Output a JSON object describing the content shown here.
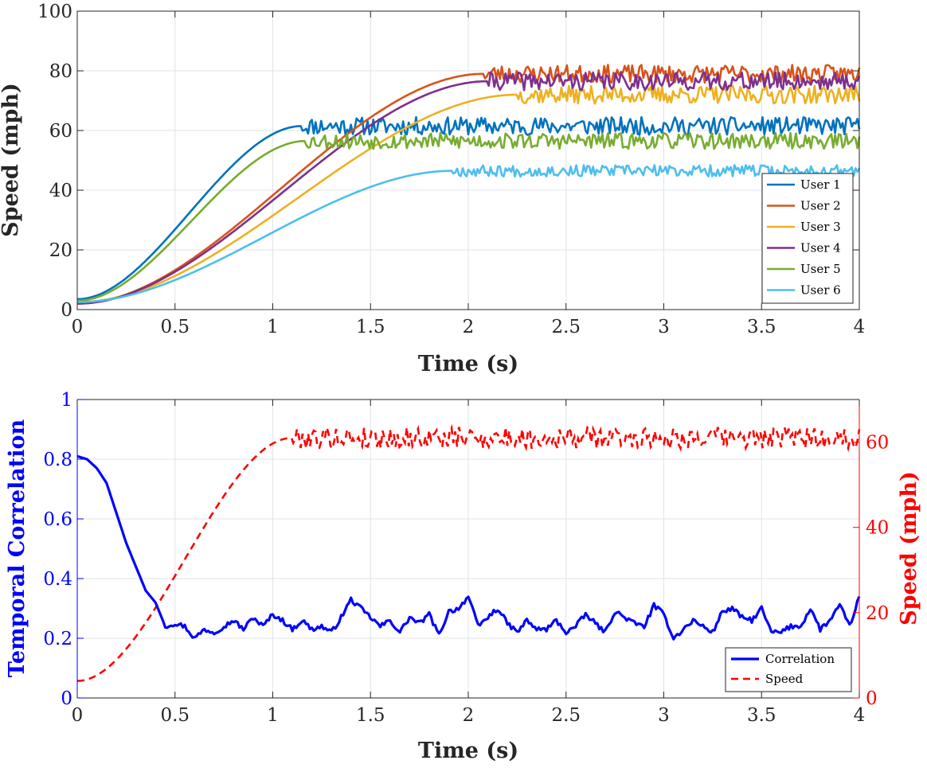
{
  "chart_data": [
    {
      "type": "line",
      "title": "",
      "xlabel": "Time (s)",
      "ylabel": "Speed (mph)",
      "xlim": [
        0,
        4
      ],
      "ylim": [
        0,
        100
      ],
      "xticks": [
        "0",
        "0.5",
        "1",
        "1.5",
        "2",
        "2.5",
        "3",
        "3.5",
        "4"
      ],
      "yticks": [
        "0",
        "20",
        "40",
        "60",
        "80",
        "100"
      ],
      "grid": true,
      "legend_location": "bottom-right",
      "series": [
        {
          "name": "User 1",
          "color": "#0072BD",
          "start": 3.5,
          "plateau": 61.5,
          "t_plateau": 1.15,
          "noise": 2.0,
          "seed": 11
        },
        {
          "name": "User 2",
          "color": "#D95319",
          "start": 2.0,
          "plateau": 79.0,
          "t_plateau": 2.08,
          "noise": 2.0,
          "seed": 23
        },
        {
          "name": "User 3",
          "color": "#EDB120",
          "start": 2.5,
          "plateau": 72.0,
          "t_plateau": 2.25,
          "noise": 2.0,
          "seed": 37
        },
        {
          "name": "User 4",
          "color": "#7E2F8E",
          "start": 2.0,
          "plateau": 76.5,
          "t_plateau": 2.1,
          "noise": 2.0,
          "seed": 41
        },
        {
          "name": "User 5",
          "color": "#77AC30",
          "start": 3.0,
          "plateau": 56.5,
          "t_plateau": 1.17,
          "noise": 1.8,
          "seed": 53
        },
        {
          "name": "User 6",
          "color": "#4DBEEE",
          "start": 2.5,
          "plateau": 46.5,
          "t_plateau": 1.92,
          "noise": 1.3,
          "seed": 67
        }
      ]
    },
    {
      "type": "line",
      "title": "",
      "xlabel": "Time (s)",
      "ylabel_left": "Temporal Correlation",
      "ylabel_right": "Speed (mph)",
      "xlim": [
        0,
        4
      ],
      "ylim_left": [
        0,
        1
      ],
      "ylim_right": [
        0,
        70
      ],
      "xticks": [
        "0",
        "0.5",
        "1",
        "1.5",
        "2",
        "2.5",
        "3",
        "3.5",
        "4"
      ],
      "yticks_left": [
        "0",
        "0.2",
        "0.4",
        "0.6",
        "0.8",
        "1"
      ],
      "yticks_right": [
        "0",
        "20",
        "40",
        "60"
      ],
      "left_color": "#0000FF",
      "right_color": "#FF0000",
      "grid": true,
      "legend_location": "bottom-right",
      "series": [
        {
          "name": "Correlation",
          "color": "#0000FF",
          "style": "solid",
          "axis": "left",
          "x": [
            0,
            0.05,
            0.1,
            0.15,
            0.2,
            0.25,
            0.3,
            0.35,
            0.4,
            0.45,
            0.5,
            0.55,
            0.6,
            0.65,
            0.7,
            0.75,
            0.8,
            0.85,
            0.9,
            0.95,
            1.0,
            1.05,
            1.1,
            1.15,
            1.2,
            1.25,
            1.3,
            1.35,
            1.4,
            1.45,
            1.5,
            1.55,
            1.6,
            1.65,
            1.7,
            1.75,
            1.8,
            1.85,
            1.9,
            1.95,
            2.0,
            2.05,
            2.1,
            2.15,
            2.2,
            2.25,
            2.3,
            2.35,
            2.4,
            2.45,
            2.5,
            2.55,
            2.6,
            2.65,
            2.7,
            2.75,
            2.8,
            2.85,
            2.9,
            2.95,
            3.0,
            3.05,
            3.1,
            3.15,
            3.2,
            3.25,
            3.3,
            3.35,
            3.4,
            3.45,
            3.5,
            3.55,
            3.6,
            3.65,
            3.7,
            3.75,
            3.8,
            3.85,
            3.9,
            3.95,
            4.0
          ],
          "values": [
            0.81,
            0.8,
            0.77,
            0.72,
            0.62,
            0.52,
            0.44,
            0.36,
            0.32,
            0.24,
            0.25,
            0.24,
            0.2,
            0.23,
            0.22,
            0.24,
            0.26,
            0.23,
            0.27,
            0.24,
            0.28,
            0.26,
            0.23,
            0.26,
            0.23,
            0.24,
            0.22,
            0.27,
            0.33,
            0.3,
            0.27,
            0.24,
            0.26,
            0.22,
            0.27,
            0.25,
            0.28,
            0.21,
            0.29,
            0.3,
            0.34,
            0.24,
            0.27,
            0.3,
            0.25,
            0.22,
            0.26,
            0.23,
            0.23,
            0.26,
            0.22,
            0.24,
            0.28,
            0.25,
            0.22,
            0.29,
            0.27,
            0.25,
            0.24,
            0.31,
            0.28,
            0.2,
            0.23,
            0.26,
            0.24,
            0.22,
            0.29,
            0.3,
            0.27,
            0.26,
            0.3,
            0.22,
            0.22,
            0.24,
            0.24,
            0.3,
            0.23,
            0.26,
            0.31,
            0.24,
            0.34
          ]
        },
        {
          "name": "Speed",
          "color": "#FF0000",
          "style": "dashed",
          "axis": "right",
          "start": 4.0,
          "plateau": 61.0,
          "t_plateau": 1.1,
          "noise": 1.7,
          "seed": 79
        }
      ]
    }
  ]
}
